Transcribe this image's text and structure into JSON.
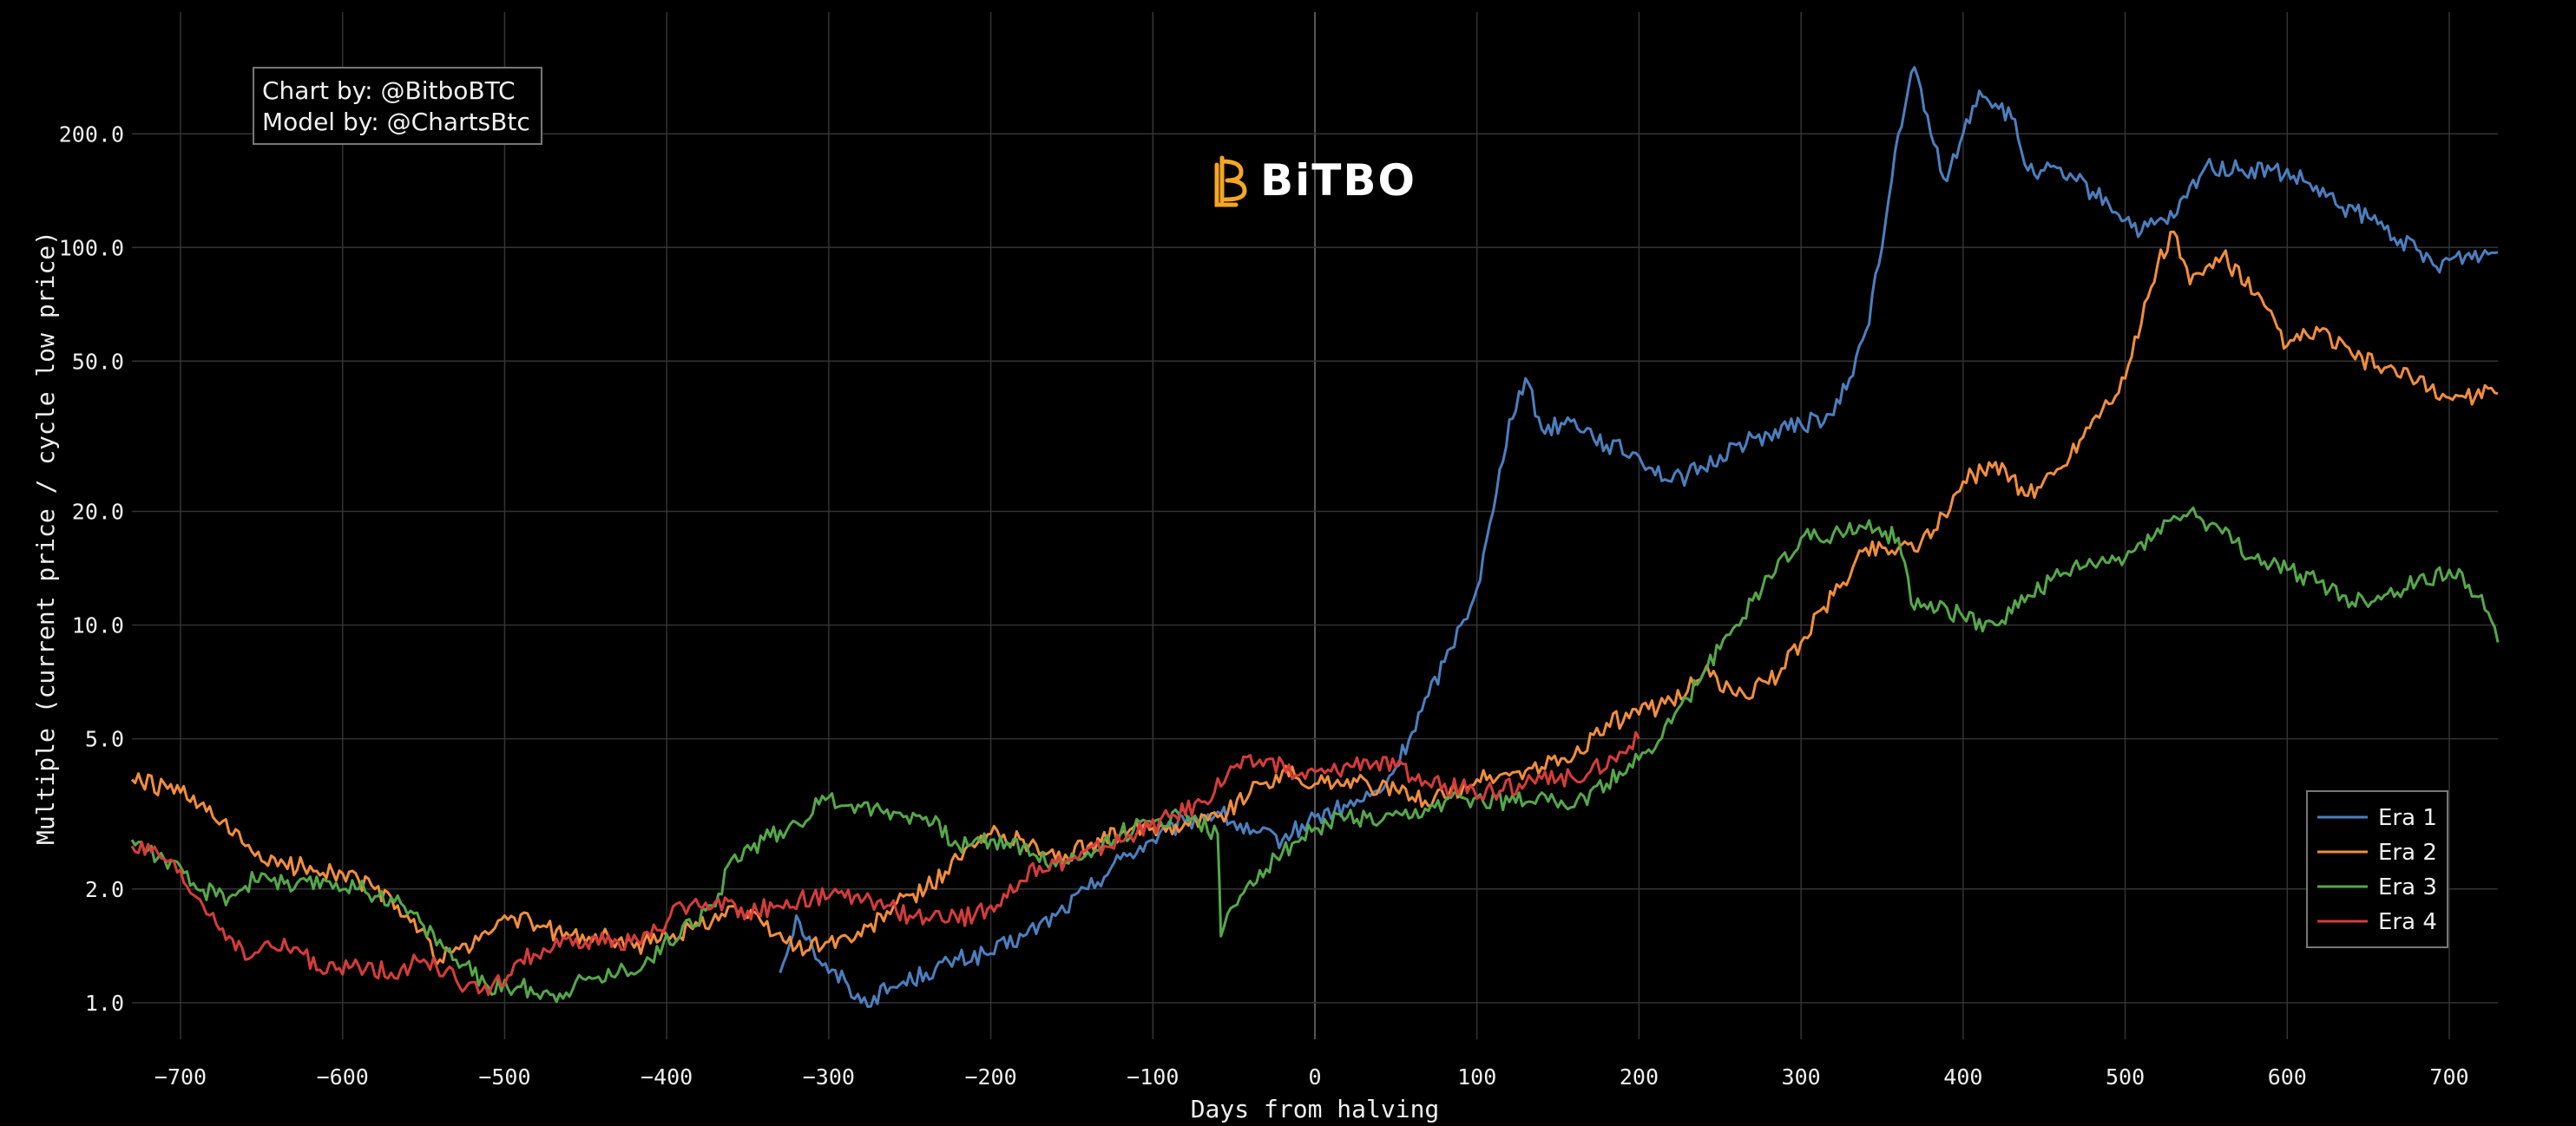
{
  "chart_data": {
    "type": "line",
    "title": "",
    "xlabel": "Days from halving",
    "ylabel": "Multiple (current price / cycle low price)",
    "xlim": [
      -730,
      730
    ],
    "ylim": [
      0.8,
      420
    ],
    "yscale": "log",
    "x_ticks": [
      -700,
      -600,
      -500,
      -400,
      -300,
      -200,
      -100,
      0,
      100,
      200,
      300,
      400,
      500,
      600,
      700
    ],
    "y_ticks": [
      1.0,
      2.0,
      5.0,
      10.0,
      20.0,
      50.0,
      100.0,
      200.0
    ],
    "y_tick_labels": [
      "1.0",
      "2.0",
      "5.0",
      "10.0",
      "20.0",
      "50.0",
      "100.0",
      "200.0"
    ],
    "grid": true,
    "legend_position": "bottom-right",
    "series": [
      {
        "name": "Era 1",
        "color": "#4b7fbf",
        "x": [
          -330,
          -320,
          -310,
          -300,
          -290,
          -280,
          -260,
          -240,
          -220,
          -200,
          -180,
          -160,
          -140,
          -120,
          -100,
          -80,
          -60,
          -40,
          -20,
          0,
          20,
          40,
          50,
          60,
          70,
          80,
          90,
          100,
          110,
          120,
          130,
          140,
          160,
          180,
          200,
          220,
          240,
          260,
          280,
          300,
          320,
          330,
          340,
          350,
          360,
          370,
          380,
          390,
          400,
          410,
          420,
          430,
          440,
          450,
          470,
          490,
          510,
          530,
          550,
          570,
          590,
          610,
          630,
          650,
          670,
          690,
          710,
          730
        ],
        "y": [
          1.2,
          1.7,
          1.4,
          1.2,
          1.15,
          1.0,
          1.1,
          1.2,
          1.3,
          1.35,
          1.5,
          1.7,
          2.0,
          2.4,
          2.7,
          3.0,
          3.2,
          2.8,
          2.7,
          3.1,
          3.3,
          3.6,
          4.2,
          5.2,
          6.5,
          8.0,
          10.0,
          12.5,
          20.0,
          35.0,
          45.0,
          33.0,
          35.0,
          30.0,
          28.0,
          24.0,
          26.0,
          30.0,
          32.0,
          34.0,
          36.0,
          45.0,
          60.0,
          100.0,
          200.0,
          300.0,
          200.0,
          150.0,
          200.0,
          260.0,
          240.0,
          220.0,
          160.0,
          160.0,
          150.0,
          130.0,
          110.0,
          120.0,
          165.0,
          160.0,
          160.0,
          150.0,
          130.0,
          120.0,
          105.0,
          90.0,
          95.0,
          97.0
        ]
      },
      {
        "name": "Era 2",
        "color": "#f28e3c",
        "x": [
          -730,
          -700,
          -680,
          -660,
          -640,
          -620,
          -600,
          -580,
          -560,
          -540,
          -530,
          -520,
          -500,
          -480,
          -460,
          -440,
          -420,
          -400,
          -380,
          -360,
          -340,
          -320,
          -300,
          -280,
          -260,
          -240,
          -220,
          -200,
          -180,
          -160,
          -140,
          -120,
          -100,
          -80,
          -60,
          -40,
          -20,
          0,
          20,
          40,
          60,
          80,
          100,
          120,
          140,
          160,
          180,
          200,
          220,
          240,
          260,
          280,
          300,
          320,
          340,
          360,
          380,
          400,
          420,
          440,
          460,
          480,
          500,
          520,
          530,
          540,
          560,
          580,
          600,
          620,
          640,
          660,
          680,
          700,
          730
        ],
        "y": [
          3.9,
          3.6,
          3.1,
          2.6,
          2.3,
          2.3,
          2.2,
          2.0,
          1.7,
          1.3,
          1.4,
          1.4,
          1.7,
          1.6,
          1.5,
          1.5,
          1.4,
          1.5,
          1.6,
          1.8,
          1.6,
          1.4,
          1.45,
          1.5,
          1.8,
          2.0,
          2.4,
          2.8,
          2.7,
          2.4,
          2.6,
          2.8,
          2.9,
          3.0,
          3.1,
          3.6,
          4.1,
          3.8,
          3.9,
          3.7,
          3.5,
          3.5,
          3.9,
          4.0,
          4.2,
          4.5,
          5.5,
          5.8,
          6.3,
          7.5,
          6.5,
          7.0,
          9.0,
          12.0,
          16.0,
          16.0,
          17.0,
          24.0,
          27.0,
          22.0,
          26.0,
          35.0,
          45.0,
          90.0,
          110.0,
          80.0,
          95.0,
          75.0,
          55.0,
          60.0,
          52.0,
          48.0,
          44.0,
          40.0,
          41.0
        ]
      },
      {
        "name": "Era 3",
        "color": "#55a84a",
        "x": [
          -730,
          -710,
          -690,
          -670,
          -650,
          -630,
          -610,
          -590,
          -570,
          -550,
          -530,
          -510,
          -490,
          -470,
          -450,
          -430,
          -410,
          -390,
          -370,
          -360,
          -340,
          -320,
          -300,
          -280,
          -260,
          -240,
          -220,
          -200,
          -180,
          -160,
          -140,
          -120,
          -100,
          -80,
          -60,
          -58,
          -50,
          -40,
          -20,
          0,
          20,
          40,
          60,
          80,
          100,
          120,
          140,
          160,
          180,
          200,
          220,
          240,
          260,
          280,
          300,
          320,
          340,
          360,
          370,
          380,
          400,
          420,
          440,
          460,
          480,
          500,
          520,
          540,
          560,
          580,
          600,
          620,
          640,
          660,
          680,
          700,
          720,
          730
        ],
        "y": [
          2.7,
          2.4,
          2.0,
          1.9,
          2.2,
          2.0,
          2.1,
          2.0,
          1.9,
          1.6,
          1.3,
          1.1,
          1.1,
          1.05,
          1.15,
          1.2,
          1.3,
          1.6,
          1.8,
          2.4,
          2.7,
          3.0,
          3.5,
          3.3,
          3.2,
          3.1,
          2.6,
          2.7,
          2.6,
          2.3,
          2.5,
          2.8,
          3.0,
          3.2,
          2.8,
          1.5,
          1.8,
          2.1,
          2.5,
          2.9,
          3.1,
          3.0,
          3.1,
          3.4,
          3.5,
          3.4,
          3.6,
          3.3,
          3.8,
          4.4,
          5.5,
          7.5,
          10.0,
          13.5,
          17.0,
          17.5,
          18.0,
          17.0,
          11.0,
          11.5,
          10.5,
          10.0,
          12.0,
          13.5,
          14.5,
          15.0,
          18.0,
          20.0,
          17.5,
          15.0,
          14.0,
          13.0,
          11.5,
          12.0,
          13.0,
          14.0,
          12.0,
          9.0
        ]
      },
      {
        "name": "Era 4",
        "color": "#d63c3a",
        "x": [
          -730,
          -710,
          -690,
          -670,
          -660,
          -650,
          -630,
          -610,
          -590,
          -570,
          -550,
          -530,
          -510,
          -490,
          -470,
          -450,
          -430,
          -410,
          -390,
          -370,
          -350,
          -330,
          -310,
          -290,
          -270,
          -250,
          -230,
          -210,
          -190,
          -170,
          -150,
          -130,
          -110,
          -90,
          -70,
          -50,
          -30,
          -10,
          10,
          30,
          50,
          70,
          90,
          110,
          130,
          150,
          170,
          190,
          200
        ],
        "y": [
          2.6,
          2.4,
          1.9,
          1.5,
          1.3,
          1.4,
          1.4,
          1.2,
          1.25,
          1.2,
          1.3,
          1.15,
          1.05,
          1.3,
          1.4,
          1.45,
          1.45,
          1.5,
          1.8,
          1.85,
          1.75,
          1.8,
          1.9,
          1.9,
          1.85,
          1.7,
          1.65,
          1.7,
          1.9,
          2.3,
          2.4,
          2.6,
          2.8,
          3.1,
          3.4,
          4.2,
          4.4,
          4.0,
          4.1,
          4.4,
          4.2,
          3.8,
          3.7,
          3.6,
          3.8,
          3.9,
          4.1,
          4.6,
          5.0
        ]
      }
    ]
  },
  "credits": {
    "line1": "Chart by: @BitboBTC",
    "line2": "Model by: @ChartsBtc"
  },
  "logo": {
    "text": "BiTBO",
    "color": "#f5a623"
  },
  "legend": {
    "items": [
      "Era 1",
      "Era 2",
      "Era 3",
      "Era 4"
    ]
  },
  "colors": {
    "background": "#000000",
    "grid": "#333333",
    "zero_line": "#555555"
  }
}
